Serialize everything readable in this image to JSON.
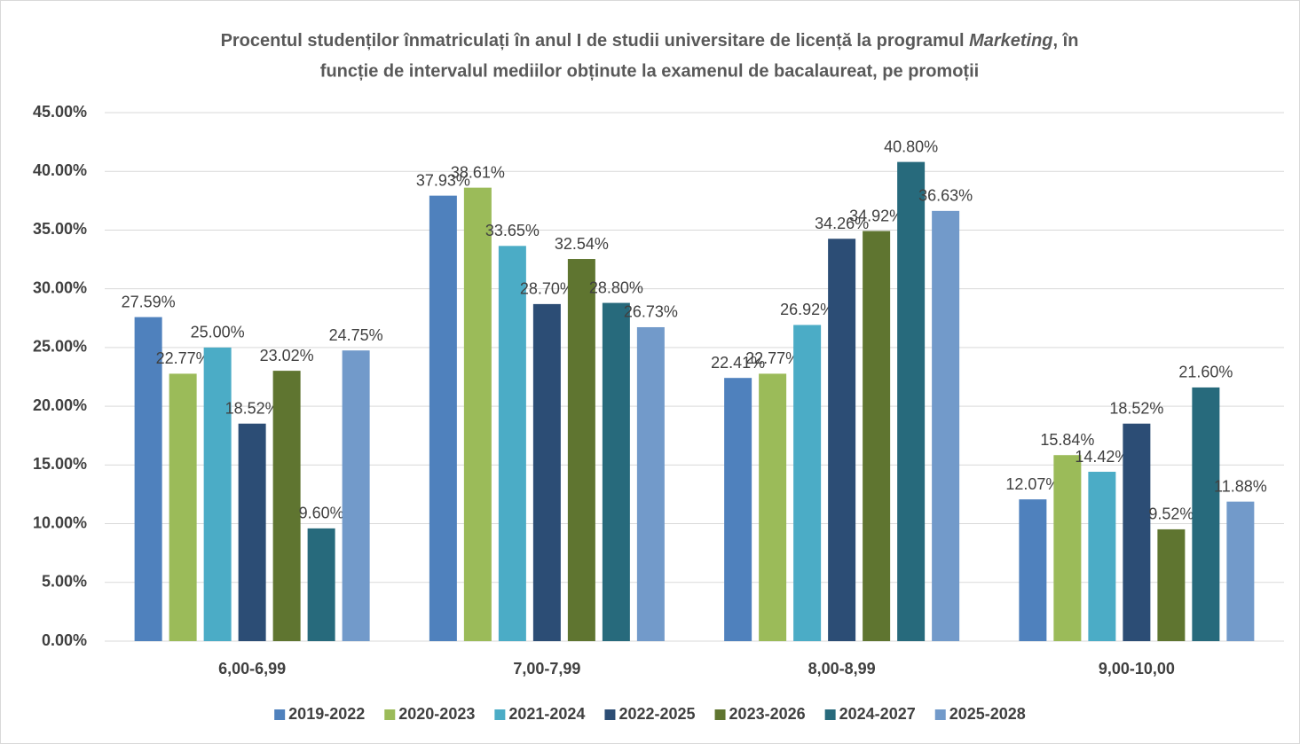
{
  "chart_data": {
    "type": "bar",
    "title": [
      "Procentul studenților înmatriculați în anul I de studii universitare de licență la programul ",
      "Marketing",
      ", în",
      "funcție de intervalul mediilor obținute la examenul de bacalaureat, pe promoții"
    ],
    "categories": [
      "6,00-6,99",
      "7,00-7,99",
      "8,00-8,99",
      "9,00-10,00"
    ],
    "series": [
      {
        "name": "2019-2022",
        "color": "#4f81bd",
        "values": [
          27.59,
          37.93,
          22.41,
          12.07
        ],
        "value_labels": [
          "27.59%",
          "37.93%",
          "22.41%",
          "12.07%"
        ]
      },
      {
        "name": "2020-2023",
        "color": "#9bbb59",
        "values": [
          22.77,
          38.61,
          22.77,
          15.84
        ],
        "value_labels": [
          "22.77%",
          "38.61%",
          "22.77%",
          "15.84%"
        ]
      },
      {
        "name": "2021-2024",
        "color": "#4bacc6",
        "values": [
          25.0,
          33.65,
          26.92,
          14.42
        ],
        "value_labels": [
          "25.00%",
          "33.65%",
          "26.92%",
          "14.42%"
        ]
      },
      {
        "name": "2022-2025",
        "color": "#2c4d75",
        "values": [
          18.52,
          28.7,
          34.26,
          18.52
        ],
        "value_labels": [
          "18.52%",
          "28.70%",
          "34.26%",
          "18.52%"
        ]
      },
      {
        "name": "2023-2026",
        "color": "#5f7530",
        "values": [
          23.02,
          32.54,
          34.92,
          9.52
        ],
        "value_labels": [
          "23.02%",
          "32.54%",
          "34.92%",
          "9.52%"
        ]
      },
      {
        "name": "2024-2027",
        "color": "#276a7c",
        "values": [
          9.6,
          28.8,
          40.8,
          21.6
        ],
        "value_labels": [
          "9.60%",
          "28.80%",
          "40.80%",
          "21.60%"
        ]
      },
      {
        "name": "2025-2028",
        "color": "#729aca",
        "values": [
          24.75,
          26.73,
          36.63,
          11.88
        ],
        "value_labels": [
          "24.75%",
          "26.73%",
          "36.63%",
          "11.88%"
        ]
      }
    ],
    "ylim": [
      0,
      45
    ],
    "yticks": [
      {
        "value": 0,
        "label": "0.00%"
      },
      {
        "value": 5,
        "label": "5.00%"
      },
      {
        "value": 10,
        "label": "10.00%"
      },
      {
        "value": 15,
        "label": "15.00%"
      },
      {
        "value": 20,
        "label": "20.00%"
      },
      {
        "value": 25,
        "label": "25.00%"
      },
      {
        "value": 30,
        "label": "30.00%"
      },
      {
        "value": 35,
        "label": "35.00%"
      },
      {
        "value": 40,
        "label": "40.00%"
      },
      {
        "value": 45,
        "label": "45.00%"
      }
    ],
    "grid": true,
    "legend": "bottom"
  }
}
